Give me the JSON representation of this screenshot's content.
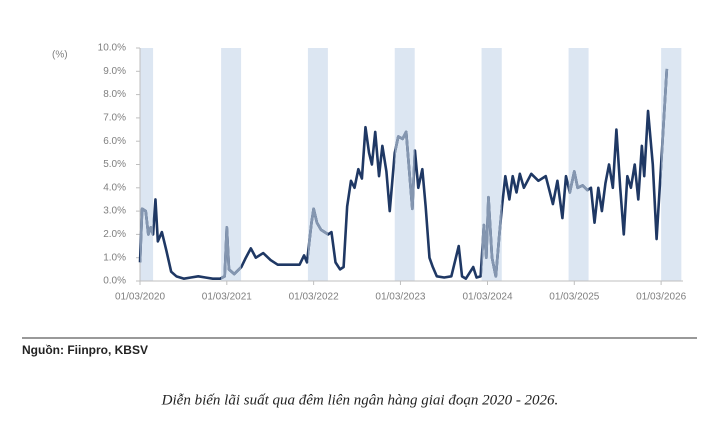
{
  "chart_data": {
    "type": "line",
    "y_axis_label": "(%)",
    "source": "Nguồn: Fiinpro, KBSV",
    "caption": "Diễn biến lãi suất qua đêm liên ngân hàng giai đoạn 2020 - 2026.",
    "xlim": [
      "2020-03-01",
      "2026-06-01"
    ],
    "xticks": [
      {
        "value": "2020-03-01",
        "label": "01/03/2020"
      },
      {
        "value": "2021-03-01",
        "label": "01/03/2021"
      },
      {
        "value": "2022-03-01",
        "label": "01/03/2022"
      },
      {
        "value": "2023-03-01",
        "label": "01/03/2023"
      },
      {
        "value": "2024-03-01",
        "label": "01/03/2024"
      },
      {
        "value": "2025-03-01",
        "label": "01/03/2025"
      },
      {
        "value": "2026-03-01",
        "label": "01/03/2026"
      }
    ],
    "ylim": [
      0,
      10
    ],
    "yticks": [
      {
        "value": 0,
        "label": "0.0%"
      },
      {
        "value": 1,
        "label": "1.0%"
      },
      {
        "value": 2,
        "label": "2.0%"
      },
      {
        "value": 3,
        "label": "3.0%"
      },
      {
        "value": 4,
        "label": "4.0%"
      },
      {
        "value": 5,
        "label": "5.0%"
      },
      {
        "value": 6,
        "label": "6.0%"
      },
      {
        "value": 7,
        "label": "7.0%"
      },
      {
        "value": 8,
        "label": "8.0%"
      },
      {
        "value": 9,
        "label": "9.0%"
      },
      {
        "value": 10,
        "label": "10.0%"
      }
    ],
    "bands": [
      [
        "2020-03-01",
        "2020-04-25"
      ],
      [
        "2021-02-05",
        "2021-04-30"
      ],
      [
        "2022-02-05",
        "2022-04-30"
      ],
      [
        "2023-02-05",
        "2023-04-30"
      ],
      [
        "2024-02-05",
        "2024-04-30"
      ],
      [
        "2025-02-05",
        "2025-04-30"
      ],
      [
        "2026-03-01",
        "2026-05-25"
      ]
    ],
    "band_color": "#dce6f2",
    "band_line_color": "#8496b0",
    "x": [
      "2020-03-01",
      "2020-03-10",
      "2020-03-25",
      "2020-04-05",
      "2020-04-15",
      "2020-04-25",
      "2020-05-05",
      "2020-05-15",
      "2020-06-01",
      "2020-06-20",
      "2020-07-10",
      "2020-08-01",
      "2020-09-01",
      "2020-10-01",
      "2020-11-01",
      "2020-12-01",
      "2021-01-01",
      "2021-02-01",
      "2021-02-20",
      "2021-03-01",
      "2021-03-10",
      "2021-04-01",
      "2021-05-01",
      "2021-05-20",
      "2021-06-10",
      "2021-07-01",
      "2021-08-01",
      "2021-09-01",
      "2021-10-01",
      "2021-11-01",
      "2021-12-01",
      "2022-01-01",
      "2022-01-20",
      "2022-02-01",
      "2022-02-20",
      "2022-03-01",
      "2022-03-15",
      "2022-04-01",
      "2022-05-01",
      "2022-05-15",
      "2022-06-01",
      "2022-06-20",
      "2022-07-05",
      "2022-07-20",
      "2022-08-05",
      "2022-08-20",
      "2022-09-05",
      "2022-09-20",
      "2022-10-05",
      "2022-10-20",
      "2022-11-01",
      "2022-11-15",
      "2022-12-01",
      "2022-12-15",
      "2023-01-01",
      "2023-01-15",
      "2023-02-05",
      "2023-02-20",
      "2023-03-10",
      "2023-03-25",
      "2023-04-05",
      "2023-04-20",
      "2023-05-01",
      "2023-05-15",
      "2023-06-01",
      "2023-06-15",
      "2023-07-01",
      "2023-07-15",
      "2023-08-01",
      "2023-09-01",
      "2023-10-01",
      "2023-11-01",
      "2023-11-15",
      "2023-12-01",
      "2024-01-01",
      "2024-01-15",
      "2024-02-01",
      "2024-02-15",
      "2024-02-25",
      "2024-03-05",
      "2024-03-20",
      "2024-04-05",
      "2024-04-20",
      "2024-05-01",
      "2024-05-15",
      "2024-06-01",
      "2024-06-15",
      "2024-07-01",
      "2024-07-15",
      "2024-08-01",
      "2024-09-01",
      "2024-10-01",
      "2024-11-01",
      "2024-12-01",
      "2024-12-20",
      "2025-01-10",
      "2025-01-25",
      "2025-02-10",
      "2025-03-01",
      "2025-03-15",
      "2025-04-05",
      "2025-04-25",
      "2025-05-10",
      "2025-05-25",
      "2025-06-10",
      "2025-06-25",
      "2025-07-10",
      "2025-07-25",
      "2025-08-10",
      "2025-08-25",
      "2025-09-10",
      "2025-09-25",
      "2025-10-10",
      "2025-10-25",
      "2025-11-10",
      "2025-11-25",
      "2025-12-10",
      "2025-12-20",
      "2026-01-05",
      "2026-01-25",
      "2026-02-10",
      "2026-03-01",
      "2026-03-25"
    ],
    "series": [
      {
        "color": "#1f3864",
        "values": [
          0.8,
          3.1,
          3.0,
          2.0,
          2.3,
          2.0,
          3.5,
          1.7,
          2.1,
          1.3,
          0.4,
          0.2,
          0.1,
          0.15,
          0.2,
          0.15,
          0.1,
          0.1,
          0.2,
          2.3,
          0.5,
          0.3,
          0.6,
          1.0,
          1.4,
          1.0,
          1.2,
          0.9,
          0.7,
          0.7,
          0.7,
          0.7,
          1.1,
          0.8,
          2.5,
          3.1,
          2.5,
          2.2,
          2.0,
          2.1,
          0.8,
          0.5,
          0.6,
          3.2,
          4.3,
          4.0,
          4.8,
          4.4,
          6.6,
          5.5,
          5.0,
          6.4,
          4.5,
          5.8,
          4.7,
          3.0,
          5.5,
          6.2,
          6.1,
          6.4,
          5.0,
          3.1,
          5.6,
          4.0,
          4.8,
          3.2,
          1.0,
          0.6,
          0.2,
          0.15,
          0.2,
          1.5,
          0.2,
          0.1,
          0.6,
          0.15,
          0.2,
          2.4,
          1.0,
          3.6,
          1.0,
          0.2,
          2.0,
          3.2,
          4.5,
          3.5,
          4.5,
          3.8,
          4.6,
          4.0,
          4.6,
          4.3,
          4.5,
          3.3,
          4.3,
          2.7,
          4.5,
          3.8,
          4.7,
          4.0,
          4.1,
          3.9,
          4.0,
          2.5,
          4.0,
          3.0,
          4.2,
          5.0,
          4.0,
          6.5,
          4.0,
          2.0,
          4.5,
          4.0,
          5.0,
          3.5,
          5.8,
          4.5,
          7.3,
          5.0,
          1.8,
          5.0,
          9.1
        ]
      }
    ]
  }
}
